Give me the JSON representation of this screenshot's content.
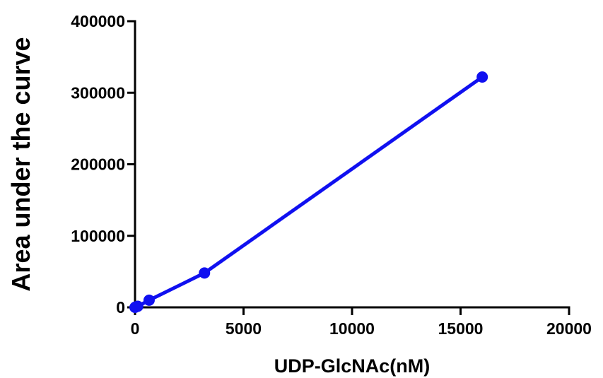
{
  "chart_data": {
    "type": "line",
    "title": "",
    "xlabel": "UDP-GlcNAc(nM)",
    "ylabel": "Area under the curve",
    "xlim": [
      0,
      20000
    ],
    "ylim": [
      0,
      400000
    ],
    "x_ticks": [
      0,
      5000,
      10000,
      15000,
      20000
    ],
    "x_tick_labels": [
      "0",
      "5000",
      "10000",
      "15000",
      "20000"
    ],
    "y_ticks": [
      0,
      100000,
      200000,
      300000,
      400000
    ],
    "y_tick_labels": [
      "0",
      "100000",
      "200000",
      "300000",
      "400000"
    ],
    "grid": false,
    "legend": "none",
    "series": [
      {
        "color": "#1010f0",
        "x": [
          0,
          25,
          125,
          650,
          3200,
          16000
        ],
        "y": [
          0,
          500,
          1500,
          10000,
          48000,
          322000
        ]
      }
    ]
  }
}
